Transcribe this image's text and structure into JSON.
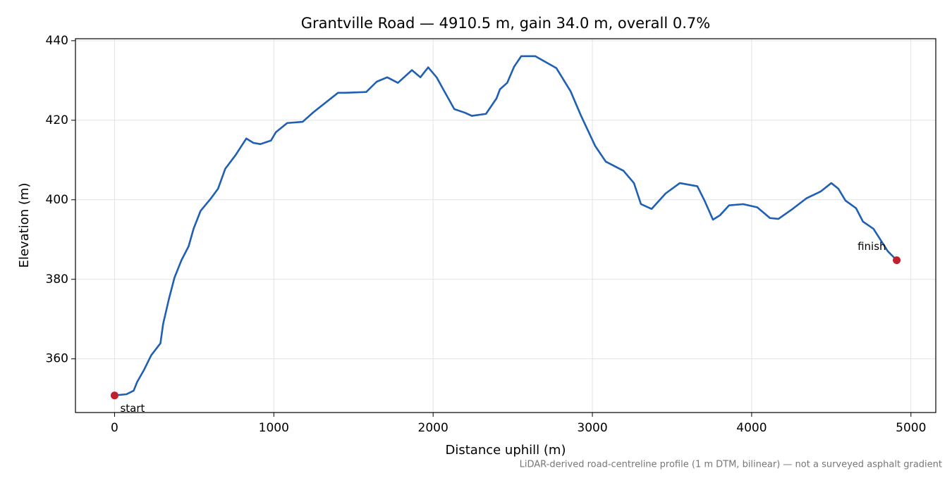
{
  "chart_data": {
    "type": "line",
    "title": "Grantville Road — 4910.5 m, gain 34.0 m, overall 0.7%",
    "xlabel": "Distance uphill (m)",
    "ylabel": "Elevation (m)",
    "note": "LiDAR-derived road-centreline profile (1 m DTM, bilinear) — not a surveyed asphalt gradient",
    "x": [
      0,
      75,
      120,
      142,
      186,
      230,
      288,
      305,
      341,
      376,
      420,
      465,
      496,
      540,
      606,
      650,
      695,
      761,
      827,
      872,
      916,
      982,
      1013,
      1084,
      1181,
      1248,
      1403,
      1447,
      1580,
      1646,
      1712,
      1779,
      1867,
      1920,
      1969,
      2022,
      2066,
      2133,
      2199,
      2243,
      2332,
      2398,
      2420,
      2465,
      2509,
      2553,
      2642,
      2774,
      2863,
      2929,
      3018,
      3084,
      3195,
      3261,
      3305,
      3372,
      3460,
      3549,
      3659,
      3704,
      3757,
      3801,
      3858,
      3947,
      4035,
      4115,
      4168,
      4257,
      4345,
      4434,
      4500,
      4544,
      4589,
      4655,
      4699,
      4765,
      4854,
      4910.5
    ],
    "values": [
      350.8,
      351.1,
      352,
      354.2,
      357.3,
      360.9,
      363.9,
      368.8,
      375,
      380.4,
      384.8,
      388.3,
      392.7,
      397.2,
      400.4,
      402.8,
      407.8,
      411.3,
      415.4,
      414.3,
      414,
      414.9,
      417,
      419.3,
      419.6,
      422,
      426.9,
      426.9,
      427.1,
      429.7,
      430.8,
      429.4,
      432.6,
      430.8,
      433.3,
      430.8,
      427.6,
      422.8,
      421.9,
      421.1,
      421.6,
      425.5,
      427.8,
      429.4,
      433.5,
      436.1,
      436.1,
      433.1,
      427.3,
      421.1,
      413.5,
      409.6,
      407.3,
      404.2,
      398.9,
      397.7,
      401.6,
      404.2,
      403.4,
      399.8,
      395,
      396.1,
      398.6,
      398.9,
      398.1,
      395.4,
      395.2,
      397.7,
      400.4,
      402.1,
      404.2,
      402.8,
      399.8,
      397.9,
      394.5,
      392.7,
      387.1,
      384.8
    ],
    "color": "#1f5fb4",
    "marker_color": "#c0202a",
    "annotations": [
      "start",
      "finish"
    ],
    "xlim": [
      -245.5,
      5156
    ],
    "ylim": [
      346.5,
      440.5
    ],
    "xticks": [
      0,
      1000,
      2000,
      3000,
      4000,
      5000
    ],
    "yticks": [
      360,
      380,
      400,
      420,
      440
    ],
    "grid": true
  }
}
